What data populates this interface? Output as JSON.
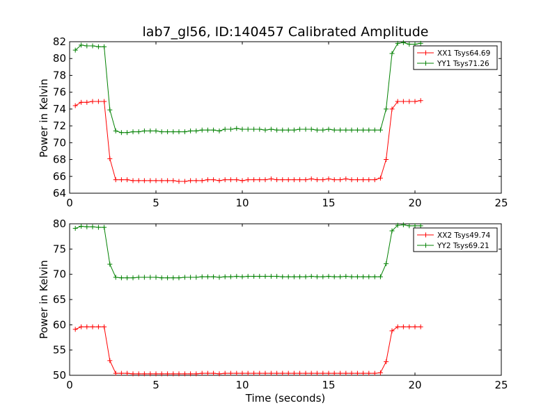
{
  "figure_title": "lab7_gl56, ID:140457 Calibrated Amplitude",
  "colors": {
    "xx": "#ff0000",
    "yy": "#008000",
    "frame": "#000000"
  },
  "chart_data": [
    {
      "type": "line",
      "xlabel": "",
      "ylabel": "Power in Kelvin",
      "xlim": [
        0,
        25
      ],
      "ylim": [
        64,
        82
      ],
      "xticks": [
        0,
        5,
        10,
        15,
        20,
        25
      ],
      "yticks": [
        64,
        66,
        68,
        70,
        72,
        74,
        76,
        78,
        80,
        82
      ],
      "legend_position": "top-right",
      "x": [
        0.33,
        0.67,
        1.0,
        1.33,
        1.67,
        2.0,
        2.33,
        2.67,
        3.0,
        3.33,
        3.67,
        4.0,
        4.33,
        4.67,
        5.0,
        5.33,
        5.67,
        6.0,
        6.33,
        6.67,
        7.0,
        7.33,
        7.67,
        8.0,
        8.33,
        8.67,
        9.0,
        9.33,
        9.67,
        10.0,
        10.33,
        10.67,
        11.0,
        11.33,
        11.67,
        12.0,
        12.33,
        12.67,
        13.0,
        13.33,
        13.67,
        14.0,
        14.33,
        14.67,
        15.0,
        15.33,
        15.67,
        16.0,
        16.33,
        16.67,
        17.0,
        17.33,
        17.67,
        18.0,
        18.33,
        18.67,
        19.0,
        19.33,
        19.67,
        20.0,
        20.33
      ],
      "series": [
        {
          "name": "XX1 Tsys64.69",
          "color": "#ff0000",
          "values": [
            74.4,
            74.8,
            74.8,
            74.9,
            74.9,
            74.9,
            68.1,
            65.6,
            65.6,
            65.6,
            65.5,
            65.5,
            65.5,
            65.5,
            65.5,
            65.5,
            65.5,
            65.5,
            65.4,
            65.4,
            65.5,
            65.5,
            65.5,
            65.6,
            65.6,
            65.5,
            65.6,
            65.6,
            65.6,
            65.5,
            65.6,
            65.6,
            65.6,
            65.6,
            65.7,
            65.6,
            65.6,
            65.6,
            65.6,
            65.6,
            65.6,
            65.7,
            65.6,
            65.6,
            65.7,
            65.6,
            65.6,
            65.7,
            65.6,
            65.6,
            65.6,
            65.6,
            65.6,
            65.8,
            68.0,
            74.0,
            74.9,
            74.9,
            74.9,
            74.9,
            75.0
          ]
        },
        {
          "name": "YY1 Tsys71.26",
          "color": "#008000",
          "values": [
            81.0,
            81.6,
            81.5,
            81.5,
            81.4,
            81.4,
            73.9,
            71.4,
            71.2,
            71.2,
            71.3,
            71.3,
            71.4,
            71.4,
            71.4,
            71.3,
            71.3,
            71.3,
            71.3,
            71.3,
            71.4,
            71.4,
            71.5,
            71.5,
            71.5,
            71.4,
            71.6,
            71.6,
            71.7,
            71.6,
            71.6,
            71.6,
            71.6,
            71.5,
            71.6,
            71.5,
            71.5,
            71.5,
            71.5,
            71.6,
            71.6,
            71.6,
            71.5,
            71.5,
            71.6,
            71.5,
            71.5,
            71.5,
            71.5,
            71.5,
            71.5,
            71.5,
            71.5,
            71.5,
            74.0,
            80.6,
            81.8,
            81.9,
            81.7,
            81.7,
            81.8
          ]
        }
      ]
    },
    {
      "type": "line",
      "xlabel": "Time (seconds)",
      "ylabel": "Power in Kelvin",
      "xlim": [
        0,
        25
      ],
      "ylim": [
        50,
        80
      ],
      "xticks": [
        0,
        5,
        10,
        15,
        20,
        25
      ],
      "yticks": [
        50,
        55,
        60,
        65,
        70,
        75,
        80
      ],
      "legend_position": "top-right",
      "x": [
        0.33,
        0.67,
        1.0,
        1.33,
        1.67,
        2.0,
        2.33,
        2.67,
        3.0,
        3.33,
        3.67,
        4.0,
        4.33,
        4.67,
        5.0,
        5.33,
        5.67,
        6.0,
        6.33,
        6.67,
        7.0,
        7.33,
        7.67,
        8.0,
        8.33,
        8.67,
        9.0,
        9.33,
        9.67,
        10.0,
        10.33,
        10.67,
        11.0,
        11.33,
        11.67,
        12.0,
        12.33,
        12.67,
        13.0,
        13.33,
        13.67,
        14.0,
        14.33,
        14.67,
        15.0,
        15.33,
        15.67,
        16.0,
        16.33,
        16.67,
        17.0,
        17.33,
        17.67,
        18.0,
        18.33,
        18.67,
        19.0,
        19.33,
        19.67,
        20.0,
        20.33
      ],
      "series": [
        {
          "name": "XX2 Tsys49.74",
          "color": "#ff0000",
          "values": [
            59.1,
            59.6,
            59.6,
            59.6,
            59.6,
            59.6,
            52.9,
            50.4,
            50.4,
            50.4,
            50.3,
            50.3,
            50.3,
            50.3,
            50.3,
            50.3,
            50.3,
            50.3,
            50.3,
            50.3,
            50.3,
            50.3,
            50.4,
            50.4,
            50.4,
            50.3,
            50.4,
            50.4,
            50.4,
            50.4,
            50.4,
            50.4,
            50.4,
            50.4,
            50.4,
            50.4,
            50.4,
            50.4,
            50.4,
            50.4,
            50.4,
            50.4,
            50.4,
            50.4,
            50.4,
            50.4,
            50.4,
            50.4,
            50.4,
            50.4,
            50.4,
            50.4,
            50.4,
            50.5,
            52.7,
            58.8,
            59.6,
            59.6,
            59.6,
            59.6,
            59.6
          ]
        },
        {
          "name": "YY2 Tsys69.21",
          "color": "#008000",
          "values": [
            79.1,
            79.5,
            79.4,
            79.4,
            79.3,
            79.3,
            72.0,
            69.4,
            69.3,
            69.3,
            69.3,
            69.4,
            69.4,
            69.4,
            69.4,
            69.3,
            69.3,
            69.3,
            69.3,
            69.4,
            69.4,
            69.4,
            69.5,
            69.5,
            69.5,
            69.4,
            69.5,
            69.5,
            69.6,
            69.5,
            69.6,
            69.6,
            69.6,
            69.6,
            69.6,
            69.6,
            69.5,
            69.5,
            69.5,
            69.5,
            69.5,
            69.6,
            69.5,
            69.5,
            69.6,
            69.5,
            69.5,
            69.6,
            69.5,
            69.5,
            69.5,
            69.5,
            69.5,
            69.5,
            72.1,
            78.6,
            79.7,
            79.8,
            79.6,
            79.6,
            79.6
          ]
        }
      ]
    }
  ]
}
